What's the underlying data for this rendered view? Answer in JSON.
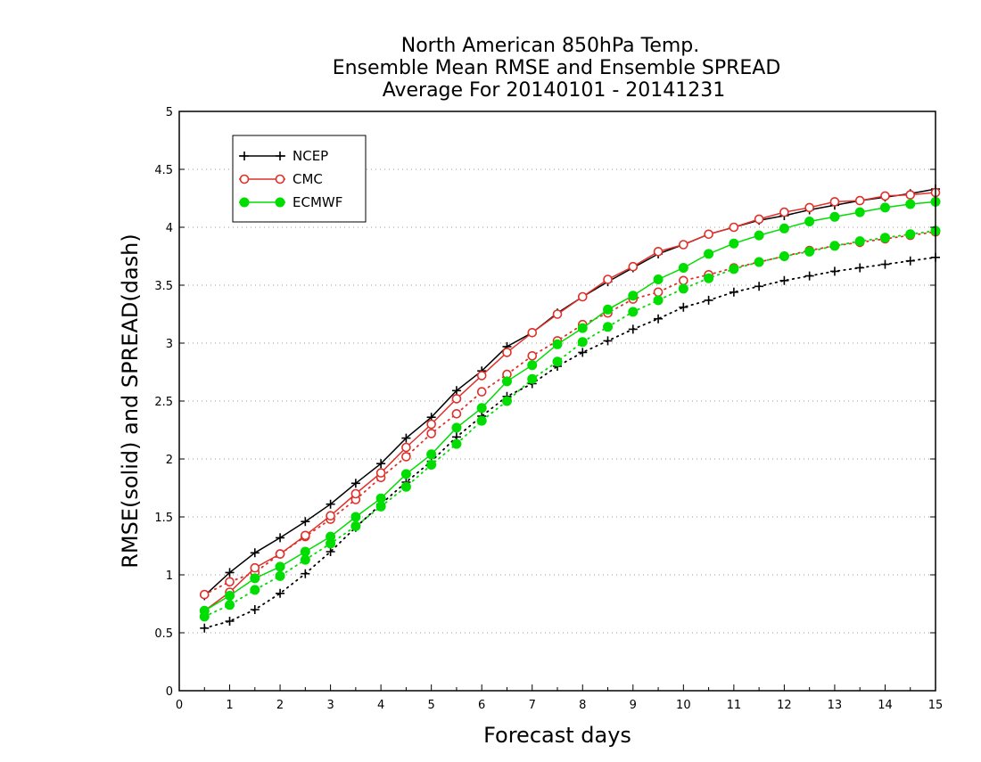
{
  "chart_data": {
    "type": "line",
    "title": [
      "North American 850hPa Temp.",
      "Ensemble Mean RMSE and Ensemble SPREAD",
      "Average For 20140101 - 20141231"
    ],
    "xlabel": "Forecast days",
    "ylabel": "RMSE(solid) and SPREAD(dash)",
    "xlim": [
      0,
      15
    ],
    "ylim": [
      0,
      5
    ],
    "x_ticks": [
      "0",
      "1",
      "2",
      "3",
      "4",
      "5",
      "6",
      "7",
      "8",
      "9",
      "10",
      "11",
      "12",
      "13",
      "14",
      "15"
    ],
    "y_ticks": [
      "0",
      "0.5",
      "1",
      "1.5",
      "2",
      "2.5",
      "3",
      "3.5",
      "4",
      "4.5",
      "5"
    ],
    "grid": "horizontal dotted",
    "legend_position": "top-left",
    "x": [
      0.5,
      1,
      1.5,
      2,
      2.5,
      3,
      3.5,
      4,
      4.5,
      5,
      5.5,
      6,
      6.5,
      7,
      7.5,
      8,
      8.5,
      9,
      9.5,
      10,
      10.5,
      11,
      11.5,
      12,
      12.5,
      13,
      13.5,
      14,
      14.5,
      15
    ],
    "series": [
      {
        "name": "NCEP",
        "color": "#000000",
        "marker": "plus",
        "rmse": [
          0.82,
          1.02,
          1.19,
          1.32,
          1.46,
          1.61,
          1.79,
          1.96,
          2.18,
          2.36,
          2.59,
          2.76,
          2.97,
          3.09,
          3.26,
          3.4,
          3.53,
          3.65,
          3.77,
          3.85,
          3.94,
          4.0,
          4.06,
          4.1,
          4.15,
          4.19,
          4.23,
          4.26,
          4.29,
          4.33
        ],
        "spread": [
          0.54,
          0.6,
          0.7,
          0.84,
          1.01,
          1.2,
          1.41,
          1.61,
          1.8,
          1.98,
          2.19,
          2.37,
          2.54,
          2.65,
          2.8,
          2.92,
          3.02,
          3.12,
          3.21,
          3.31,
          3.37,
          3.44,
          3.49,
          3.54,
          3.58,
          3.62,
          3.65,
          3.68,
          3.71,
          3.74
        ]
      },
      {
        "name": "CMC",
        "color": "#e0302a",
        "marker": "open-circle",
        "rmse": [
          0.69,
          0.85,
          1.06,
          1.18,
          1.34,
          1.51,
          1.7,
          1.88,
          2.1,
          2.3,
          2.52,
          2.72,
          2.92,
          3.09,
          3.25,
          3.4,
          3.55,
          3.66,
          3.79,
          3.85,
          3.94,
          4.0,
          4.07,
          4.13,
          4.17,
          4.22,
          4.23,
          4.27,
          4.28,
          4.3
        ],
        "spread": [
          0.83,
          0.94,
          1.02,
          1.18,
          1.33,
          1.48,
          1.65,
          1.84,
          2.02,
          2.22,
          2.39,
          2.58,
          2.73,
          2.89,
          3.02,
          3.16,
          3.26,
          3.38,
          3.44,
          3.54,
          3.59,
          3.65,
          3.7,
          3.75,
          3.8,
          3.84,
          3.87,
          3.9,
          3.93,
          3.96
        ]
      },
      {
        "name": "ECMWF",
        "color": "#00dd00",
        "marker": "filled-circle",
        "rmse": [
          0.69,
          0.82,
          0.97,
          1.07,
          1.2,
          1.33,
          1.5,
          1.66,
          1.87,
          2.04,
          2.27,
          2.44,
          2.67,
          2.81,
          2.99,
          3.13,
          3.29,
          3.41,
          3.55,
          3.65,
          3.77,
          3.86,
          3.93,
          3.99,
          4.05,
          4.09,
          4.13,
          4.17,
          4.2,
          4.22
        ],
        "spread": [
          0.64,
          0.74,
          0.87,
          0.99,
          1.13,
          1.27,
          1.42,
          1.59,
          1.76,
          1.95,
          2.13,
          2.33,
          2.5,
          2.69,
          2.84,
          3.01,
          3.14,
          3.27,
          3.37,
          3.47,
          3.56,
          3.64,
          3.7,
          3.75,
          3.79,
          3.84,
          3.88,
          3.91,
          3.94,
          3.97
        ]
      }
    ]
  }
}
